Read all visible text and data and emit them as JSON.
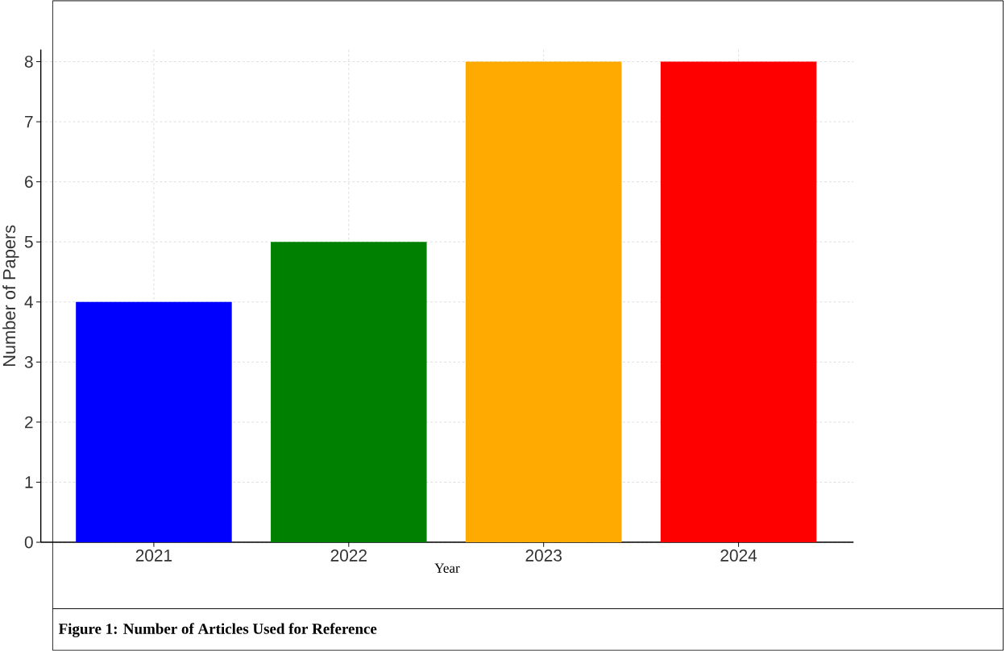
{
  "chart_data": {
    "type": "bar",
    "xlabel": "Year",
    "ylabel": "Number of Papers",
    "categories": [
      "2021",
      "2022",
      "2023",
      "2024"
    ],
    "values": [
      4,
      5,
      8,
      8
    ],
    "colors": [
      "#0000ff",
      "#008000",
      "#ffaa00",
      "#ff0000"
    ],
    "ylim": [
      0,
      8.2
    ],
    "yticks": [
      0,
      1,
      2,
      3,
      4,
      5,
      6,
      7,
      8
    ],
    "grid": true,
    "annotations": [
      "**Figure 1: Number of Articles Used for Reference**"
    ]
  }
}
